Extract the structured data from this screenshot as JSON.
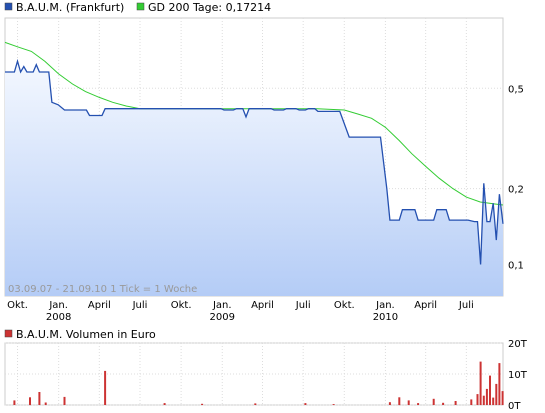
{
  "legend": [
    {
      "label": "B.A.U.M. (Frankfurt)",
      "color": "#2450b0"
    },
    {
      "label": "GD 200 Tage: 0,17214",
      "color": "#33cc33"
    }
  ],
  "info_text": "03.09.07 - 21.09.10   1 Tick = 1 Woche",
  "volume_legend": {
    "label": "B.A.U.M. Volumen in Euro",
    "color": "#cc3333"
  },
  "chart_data": [
    {
      "type": "line",
      "scale": "log",
      "ylim": [
        0.075,
        0.95
      ],
      "y_ticks": [
        {
          "value": 0.5,
          "label": "0,5"
        },
        {
          "value": 0.2,
          "label": "0,2"
        },
        {
          "value": 0.1,
          "label": "0,1"
        }
      ],
      "x_ticks": [
        {
          "date": "2007-10-01",
          "label": "Okt."
        },
        {
          "date": "2008-01-01",
          "label": "Jan."
        },
        {
          "date": "2008-04-01",
          "label": "April"
        },
        {
          "date": "2008-07-01",
          "label": "Juli"
        },
        {
          "date": "2008-10-01",
          "label": "Okt."
        },
        {
          "date": "2009-01-01",
          "label": "Jan."
        },
        {
          "date": "2009-04-01",
          "label": "April"
        },
        {
          "date": "2009-07-01",
          "label": "Juli"
        },
        {
          "date": "2009-10-01",
          "label": "Okt."
        },
        {
          "date": "2010-01-01",
          "label": "Jan."
        },
        {
          "date": "2010-04-01",
          "label": "April"
        },
        {
          "date": "2010-07-01",
          "label": "Juli"
        }
      ],
      "year_labels": [
        {
          "date": "2008-01-01",
          "label": "2008"
        },
        {
          "date": "2009-01-01",
          "label": "2009"
        },
        {
          "date": "2010-01-01",
          "label": "2010"
        }
      ],
      "x_range": [
        "2007-09-03",
        "2010-09-21"
      ],
      "grid": true,
      "series": [
        {
          "name": "B.A.U.M. (Frankfurt)",
          "color": "#2450b0",
          "fill": true,
          "points": [
            [
              "2007-09-03",
              0.58
            ],
            [
              "2007-09-24",
              0.58
            ],
            [
              "2007-10-01",
              0.64
            ],
            [
              "2007-10-08",
              0.58
            ],
            [
              "2007-10-15",
              0.61
            ],
            [
              "2007-10-22",
              0.58
            ],
            [
              "2007-11-05",
              0.58
            ],
            [
              "2007-11-12",
              0.62
            ],
            [
              "2007-11-19",
              0.58
            ],
            [
              "2007-12-10",
              0.58
            ],
            [
              "2007-12-17",
              0.44
            ],
            [
              "2007-12-31",
              0.43
            ],
            [
              "2008-01-14",
              0.41
            ],
            [
              "2008-03-03",
              0.41
            ],
            [
              "2008-03-10",
              0.39
            ],
            [
              "2008-04-07",
              0.39
            ],
            [
              "2008-04-14",
              0.415
            ],
            [
              "2008-08-04",
              0.415
            ],
            [
              "2008-08-11",
              0.415
            ],
            [
              "2008-12-29",
              0.415
            ],
            [
              "2009-01-05",
              0.41
            ],
            [
              "2009-01-26",
              0.41
            ],
            [
              "2009-02-02",
              0.415
            ],
            [
              "2009-02-16",
              0.415
            ],
            [
              "2009-02-23",
              0.385
            ],
            [
              "2009-03-02",
              0.415
            ],
            [
              "2009-04-20",
              0.415
            ],
            [
              "2009-04-27",
              0.41
            ],
            [
              "2009-05-18",
              0.41
            ],
            [
              "2009-05-25",
              0.415
            ],
            [
              "2009-06-15",
              0.415
            ],
            [
              "2009-06-22",
              0.41
            ],
            [
              "2009-07-06",
              0.41
            ],
            [
              "2009-07-13",
              0.415
            ],
            [
              "2009-07-27",
              0.415
            ],
            [
              "2009-08-03",
              0.405
            ],
            [
              "2009-09-21",
              0.405
            ],
            [
              "2009-10-12",
              0.32
            ],
            [
              "2009-12-21",
              0.32
            ],
            [
              "2010-01-04",
              0.2
            ],
            [
              "2010-01-11",
              0.15
            ],
            [
              "2010-02-01",
              0.15
            ],
            [
              "2010-02-08",
              0.165
            ],
            [
              "2010-03-08",
              0.165
            ],
            [
              "2010-03-15",
              0.15
            ],
            [
              "2010-04-19",
              0.15
            ],
            [
              "2010-04-26",
              0.165
            ],
            [
              "2010-05-17",
              0.165
            ],
            [
              "2010-05-24",
              0.15
            ],
            [
              "2010-07-05",
              0.15
            ],
            [
              "2010-07-19",
              0.148
            ],
            [
              "2010-07-26",
              0.148
            ],
            [
              "2010-08-02",
              0.1
            ],
            [
              "2010-08-09",
              0.21
            ],
            [
              "2010-08-16",
              0.148
            ],
            [
              "2010-08-23",
              0.148
            ],
            [
              "2010-08-30",
              0.175
            ],
            [
              "2010-09-06",
              0.125
            ],
            [
              "2010-09-13",
              0.19
            ],
            [
              "2010-09-21",
              0.145
            ]
          ]
        },
        {
          "name": "GD 200 Tage: 0,17214",
          "color": "#33cc33",
          "fill": false,
          "points": [
            [
              "2007-09-03",
              0.76
            ],
            [
              "2007-10-01",
              0.73
            ],
            [
              "2007-11-01",
              0.7
            ],
            [
              "2007-12-01",
              0.64
            ],
            [
              "2008-01-01",
              0.57
            ],
            [
              "2008-02-01",
              0.52
            ],
            [
              "2008-03-01",
              0.485
            ],
            [
              "2008-04-01",
              0.46
            ],
            [
              "2008-05-01",
              0.44
            ],
            [
              "2008-06-01",
              0.425
            ],
            [
              "2008-07-01",
              0.415
            ],
            [
              "2008-09-01",
              0.415
            ],
            [
              "2009-01-01",
              0.415
            ],
            [
              "2009-04-01",
              0.415
            ],
            [
              "2009-08-01",
              0.415
            ],
            [
              "2009-10-01",
              0.41
            ],
            [
              "2009-11-01",
              0.395
            ],
            [
              "2009-12-01",
              0.38
            ],
            [
              "2010-01-01",
              0.35
            ],
            [
              "2010-02-01",
              0.31
            ],
            [
              "2010-03-01",
              0.275
            ],
            [
              "2010-04-01",
              0.245
            ],
            [
              "2010-05-01",
              0.22
            ],
            [
              "2010-06-01",
              0.2
            ],
            [
              "2010-07-01",
              0.185
            ],
            [
              "2010-08-01",
              0.177
            ],
            [
              "2010-09-01",
              0.174
            ],
            [
              "2010-09-21",
              0.17214
            ]
          ]
        }
      ]
    },
    {
      "type": "bar",
      "title": "B.A.U.M. Volumen in Euro",
      "ylim": [
        0,
        20000
      ],
      "y_ticks": [
        {
          "value": 20000,
          "label": "20T"
        },
        {
          "value": 10000,
          "label": "10T"
        },
        {
          "value": 0,
          "label": "0T"
        }
      ],
      "bars": [
        [
          "2007-09-24",
          1500
        ],
        [
          "2007-10-29",
          2500
        ],
        [
          "2007-11-19",
          4200
        ],
        [
          "2007-12-03",
          800
        ],
        [
          "2008-01-14",
          2600
        ],
        [
          "2008-04-14",
          11000
        ],
        [
          "2008-08-25",
          600
        ],
        [
          "2008-11-17",
          400
        ],
        [
          "2009-03-16",
          500
        ],
        [
          "2009-07-06",
          600
        ],
        [
          "2009-09-07",
          300
        ],
        [
          "2010-01-11",
          900
        ],
        [
          "2010-02-01",
          2500
        ],
        [
          "2010-02-22",
          1500
        ],
        [
          "2010-03-15",
          600
        ],
        [
          "2010-04-19",
          2000
        ],
        [
          "2010-05-10",
          700
        ],
        [
          "2010-06-07",
          1300
        ],
        [
          "2010-07-12",
          1800
        ],
        [
          "2010-07-26",
          3500
        ],
        [
          "2010-08-02",
          14000
        ],
        [
          "2010-08-09",
          3000
        ],
        [
          "2010-08-16",
          5200
        ],
        [
          "2010-08-23",
          9500
        ],
        [
          "2010-08-30",
          2400
        ],
        [
          "2010-09-06",
          6800
        ],
        [
          "2010-09-13",
          13500
        ],
        [
          "2010-09-20",
          4500
        ]
      ]
    }
  ]
}
